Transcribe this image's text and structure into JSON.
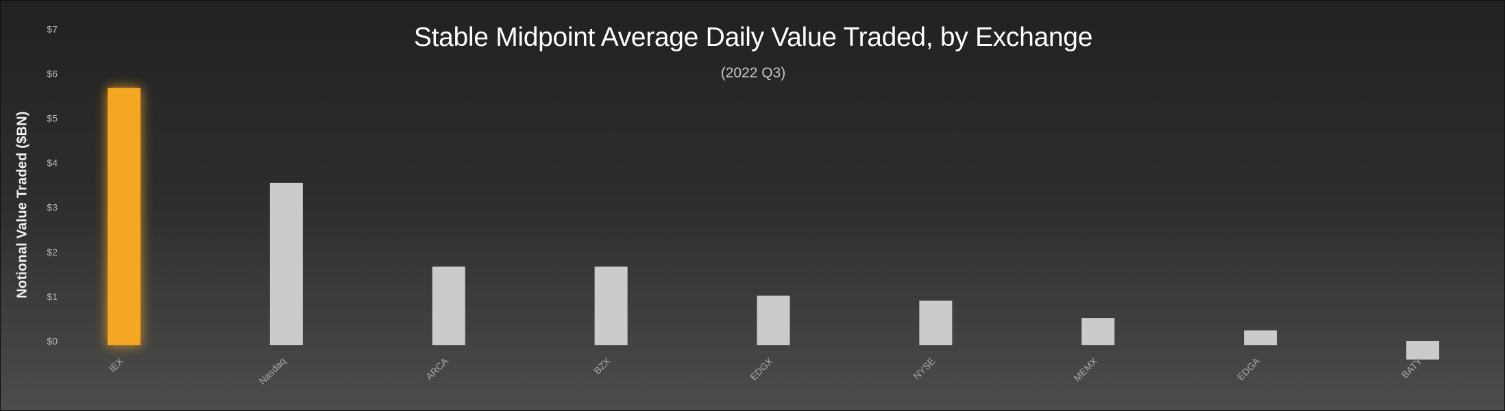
{
  "chart_data": {
    "type": "bar",
    "title": "Stable Midpoint Average Daily Value Traded, by Exchange",
    "subtitle": "(2022 Q3)",
    "ylabel": "Notional Value Traded ($BN)",
    "xlabel": "",
    "categories": [
      "IEX",
      "Nasdaq",
      "ARCA",
      "BZX",
      "EDGX",
      "NYSE",
      "MEMX",
      "EDGA",
      "BATY"
    ],
    "values": [
      5.68,
      3.55,
      1.67,
      1.67,
      1.02,
      0.91,
      0.52,
      0.24,
      -0.32
    ],
    "ylim": [
      0,
      7
    ],
    "yticks": [
      0,
      1,
      2,
      3,
      4,
      5,
      6,
      7
    ],
    "ytick_labels": [
      "$0",
      "$1",
      "$2",
      "$3",
      "$4",
      "$5",
      "$6",
      "$7"
    ],
    "highlight_category": "IEX",
    "colors": {
      "highlight": "#f5a623",
      "default_bar": "#cbcbcb",
      "background_top": "#212121",
      "background_bottom": "#4c4c4c"
    },
    "grid": false,
    "legend": "none"
  }
}
